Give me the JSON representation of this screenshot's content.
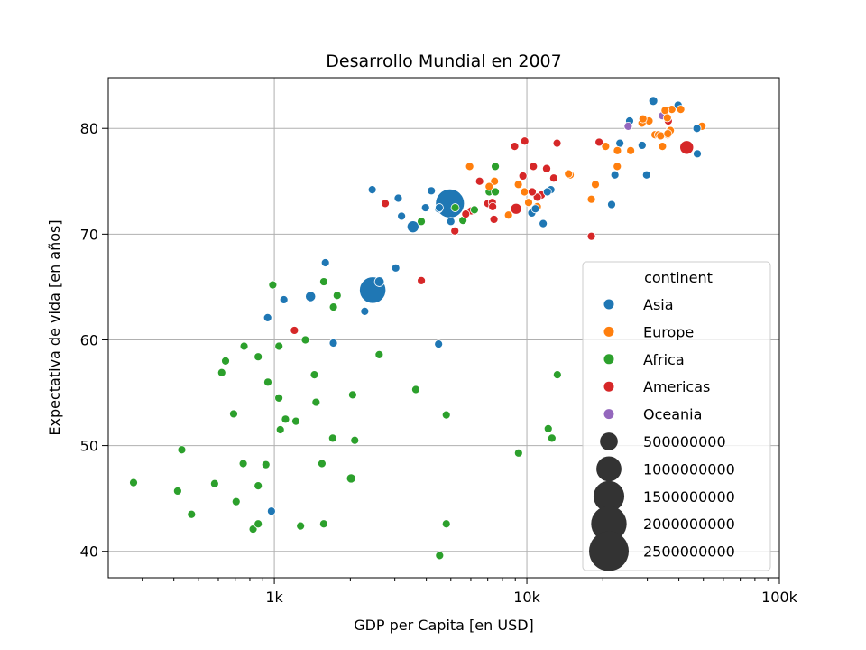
{
  "chart_data": {
    "type": "scatter",
    "title": "Desarrollo Mundial en 2007",
    "xlabel": "GDP per Capita [en USD]",
    "ylabel": "Expectativa de vida [en años]",
    "x_scale": "log",
    "xlim": [
      220,
      100000
    ],
    "ylim": [
      37.5,
      84.8
    ],
    "x_ticks": [
      {
        "value": 1000,
        "label": "1k"
      },
      {
        "value": 10000,
        "label": "10k"
      },
      {
        "value": 100000,
        "label": "100k"
      }
    ],
    "y_ticks": [
      {
        "value": 40,
        "label": "40"
      },
      {
        "value": 50,
        "label": "50"
      },
      {
        "value": 60,
        "label": "60"
      },
      {
        "value": 70,
        "label": "70"
      },
      {
        "value": 80,
        "label": "80"
      }
    ],
    "grid": true,
    "legend_placement": "lower-right",
    "legend": {
      "hue_title": "continent",
      "hue_entries": [
        {
          "name": "Asia",
          "color": "#1f77b4"
        },
        {
          "name": "Europe",
          "color": "#ff7f0e"
        },
        {
          "name": "Africa",
          "color": "#2ca02c"
        },
        {
          "name": "Americas",
          "color": "#d62728"
        },
        {
          "name": "Oceania",
          "color": "#9467bd"
        }
      ],
      "size_entries": [
        {
          "label": "500000000",
          "value": 500000000
        },
        {
          "label": "1000000000",
          "value": 1000000000
        },
        {
          "label": "1500000000",
          "value": 1500000000
        },
        {
          "label": "2000000000",
          "value": 2000000000
        },
        {
          "label": "2500000000",
          "value": 2500000000
        }
      ]
    },
    "series": [
      {
        "name": "Asia",
        "color": "#1f77b4",
        "points": [
          [
            4959,
            72.9,
            1318700000
          ],
          [
            2452,
            64.7,
            1110400000
          ],
          [
            3541,
            70.7,
            223500000
          ],
          [
            2606,
            65.5,
            150400000
          ],
          [
            1391,
            64.1,
            165000000
          ],
          [
            3190,
            71.7,
            87000000
          ],
          [
            2442,
            74.2,
            85300000
          ],
          [
            941,
            62.1,
            31900000
          ],
          [
            31656,
            82.6,
            127500000
          ],
          [
            4471,
            72.4,
            48000000
          ],
          [
            1091,
            63.8,
            16000000
          ],
          [
            1593,
            67.3,
            28900000
          ],
          [
            2281,
            62.7,
            4000000
          ],
          [
            3025,
            66.8,
            2900000
          ],
          [
            1713,
            59.7,
            14100000
          ],
          [
            4471,
            59.6,
            23300000
          ],
          [
            974,
            43.8,
            31900000
          ],
          [
            3970,
            72.5,
            12000000
          ],
          [
            3095,
            73.4,
            3000000
          ],
          [
            4186,
            74.1,
            5000000
          ],
          [
            12452,
            74.2,
            5000000
          ],
          [
            11605,
            71.0,
            25000000
          ],
          [
            21655,
            72.8,
            5000000
          ],
          [
            47307,
            77.6,
            5000000
          ],
          [
            47143,
            80.0,
            4500000
          ],
          [
            39725,
            82.2,
            7000000
          ],
          [
            28604,
            78.4,
            10000000
          ],
          [
            23348,
            78.6,
            23000000
          ],
          [
            25523,
            80.7,
            7000000
          ],
          [
            29796,
            75.6,
            2500000
          ],
          [
            22316,
            75.6,
            1000000
          ],
          [
            10461,
            72.0,
            4000000
          ],
          [
            12057,
            74.0,
            800000
          ],
          [
            10806,
            72.4,
            4000000
          ],
          [
            5000,
            71.2,
            3000000
          ],
          [
            4500,
            72.5,
            2000000
          ]
        ]
      },
      {
        "name": "Europe",
        "color": "#ff7f0e",
        "points": [
          [
            32170,
            79.4,
            82400000
          ],
          [
            30470,
            80.7,
            61100000
          ],
          [
            28570,
            80.5,
            60800000
          ],
          [
            33203,
            79.4,
            58100000
          ],
          [
            8458,
            71.8,
            71200000
          ],
          [
            28821,
            80.9,
            40400000
          ],
          [
            10160,
            73.0,
            20000000
          ],
          [
            14843,
            75.6,
            38500000
          ],
          [
            36798,
            79.8,
            16500000
          ],
          [
            5937,
            76.4,
            10000000
          ],
          [
            7446,
            75.0,
            7300000
          ],
          [
            9253,
            74.7,
            3600000
          ],
          [
            36181,
            79.5,
            5000000
          ],
          [
            36126,
            79.4,
            7500000
          ],
          [
            35278,
            81.7,
            4600000
          ],
          [
            33860,
            79.3,
            5400000
          ],
          [
            37506,
            81.8,
            7600000
          ],
          [
            49357,
            80.2,
            4600000
          ],
          [
            40676,
            81.8,
            4600000
          ],
          [
            9787,
            74.0,
            4400000
          ],
          [
            14619,
            75.7,
            4500000
          ],
          [
            18008,
            73.3,
            5500000
          ],
          [
            20510,
            78.3,
            10000000
          ],
          [
            22833,
            77.9,
            2000000
          ],
          [
            25768,
            77.9,
            10600000
          ],
          [
            34435,
            78.3,
            10000000
          ],
          [
            18678,
            74.7,
            3000000
          ],
          [
            7092,
            74.5,
            4000000
          ],
          [
            11000,
            72.6,
            5000000
          ],
          [
            22800,
            76.4,
            2000000
          ],
          [
            37000,
            79.8,
            8000000
          ],
          [
            36000,
            81.0,
            4000000
          ]
        ]
      },
      {
        "name": "Africa",
        "color": "#2ca02c",
        "points": [
          [
            1544,
            48.3,
            2000000
          ],
          [
            2082,
            50.5,
            3500000
          ],
          [
            277,
            46.5,
            64000000
          ],
          [
            2014,
            46.9,
            135000000
          ],
          [
            690,
            53.0,
            77000000
          ],
          [
            5581,
            71.3,
            80000000
          ],
          [
            3820,
            71.2,
            33000000
          ],
          [
            7092,
            74.0,
            10000000
          ],
          [
            12570,
            50.7,
            1500000
          ],
          [
            9270,
            49.3,
            48000000
          ],
          [
            13206,
            56.7,
            1000000
          ],
          [
            12154,
            51.6,
            1000000
          ],
          [
            4797,
            52.9,
            1500000
          ],
          [
            4513,
            39.6,
            1500000
          ],
          [
            4797,
            42.6,
            1000000
          ],
          [
            3633,
            55.3,
            1000000
          ],
          [
            2602,
            58.6,
            22000000
          ],
          [
            1441,
            56.7,
            1500000
          ],
          [
            1463,
            54.1,
            10000000
          ],
          [
            1107,
            52.5,
            10000000
          ],
          [
            1056,
            51.5,
            5000000
          ],
          [
            1042,
            54.5,
            1500000
          ],
          [
            2042,
            54.8,
            1500000
          ],
          [
            1703,
            50.7,
            1500000
          ],
          [
            1217,
            52.3,
            5000000
          ],
          [
            986,
            65.2,
            1000000
          ],
          [
            1570,
            65.5,
            1000000
          ],
          [
            1774,
            64.2,
            1000000
          ],
          [
            1714,
            63.1,
            2000000
          ],
          [
            1327,
            60.0,
            8000000
          ],
          [
            1043,
            59.4,
            1000000
          ],
          [
            759,
            59.4,
            1000000
          ],
          [
            641,
            58.0,
            1000000
          ],
          [
            619,
            56.9,
            1500000
          ],
          [
            863,
            58.4,
            1000000
          ],
          [
            943,
            56.0,
            1000000
          ],
          [
            753,
            48.3,
            1500000
          ],
          [
            926,
            48.2,
            1500000
          ],
          [
            430,
            49.6,
            1000000
          ],
          [
            414,
            45.7,
            1000000
          ],
          [
            580,
            46.4,
            1000000
          ],
          [
            706,
            44.7,
            1000000
          ],
          [
            470,
            43.5,
            1500000
          ],
          [
            863,
            46.2,
            1000000
          ],
          [
            824,
            42.1,
            1500000
          ],
          [
            863,
            42.6,
            1000000
          ],
          [
            1270,
            42.4,
            1500000
          ],
          [
            1569,
            42.6,
            1000000
          ],
          [
            5200,
            72.5,
            3000000
          ],
          [
            7500,
            74.0,
            2000000
          ],
          [
            6200,
            72.3,
            2000000
          ],
          [
            7500,
            76.4,
            1000000
          ]
        ]
      },
      {
        "name": "Americas",
        "color": "#d62728",
        "points": [
          [
            42951,
            78.2,
            301100000
          ],
          [
            9065,
            72.4,
            190000000
          ],
          [
            11978,
            76.2,
            108700000
          ],
          [
            36319,
            80.7,
            33400000
          ],
          [
            12779,
            75.3,
            40300000
          ],
          [
            7007,
            72.9,
            44200000
          ],
          [
            7409,
            71.4,
            28700000
          ],
          [
            13172,
            78.6,
            16300000
          ],
          [
            11416,
            73.7,
            26100000
          ],
          [
            9646,
            75.5,
            9500000
          ],
          [
            5186,
            70.3,
            12800000
          ],
          [
            6025,
            72.2,
            13000000
          ],
          [
            5728,
            71.9,
            9800000
          ],
          [
            3822,
            65.6,
            8500000
          ],
          [
            1201,
            60.9,
            8500000
          ],
          [
            2749,
            72.9,
            6000000
          ],
          [
            9809,
            78.8,
            3400000
          ],
          [
            10611,
            76.4,
            3000000
          ],
          [
            18009,
            69.8,
            1100000
          ],
          [
            19329,
            78.7,
            4000000
          ],
          [
            8948,
            78.3,
            11400000
          ],
          [
            7321,
            72.6,
            6000000
          ],
          [
            10500,
            74.0,
            3000000
          ],
          [
            6500,
            75.0,
            4000000
          ],
          [
            7300,
            73.0,
            7000000
          ],
          [
            11000,
            73.5,
            5000000
          ]
        ]
      },
      {
        "name": "Oceania",
        "color": "#9467bd",
        "points": [
          [
            34435,
            81.2,
            20400000
          ],
          [
            25185,
            80.2,
            4100000
          ]
        ]
      }
    ]
  }
}
